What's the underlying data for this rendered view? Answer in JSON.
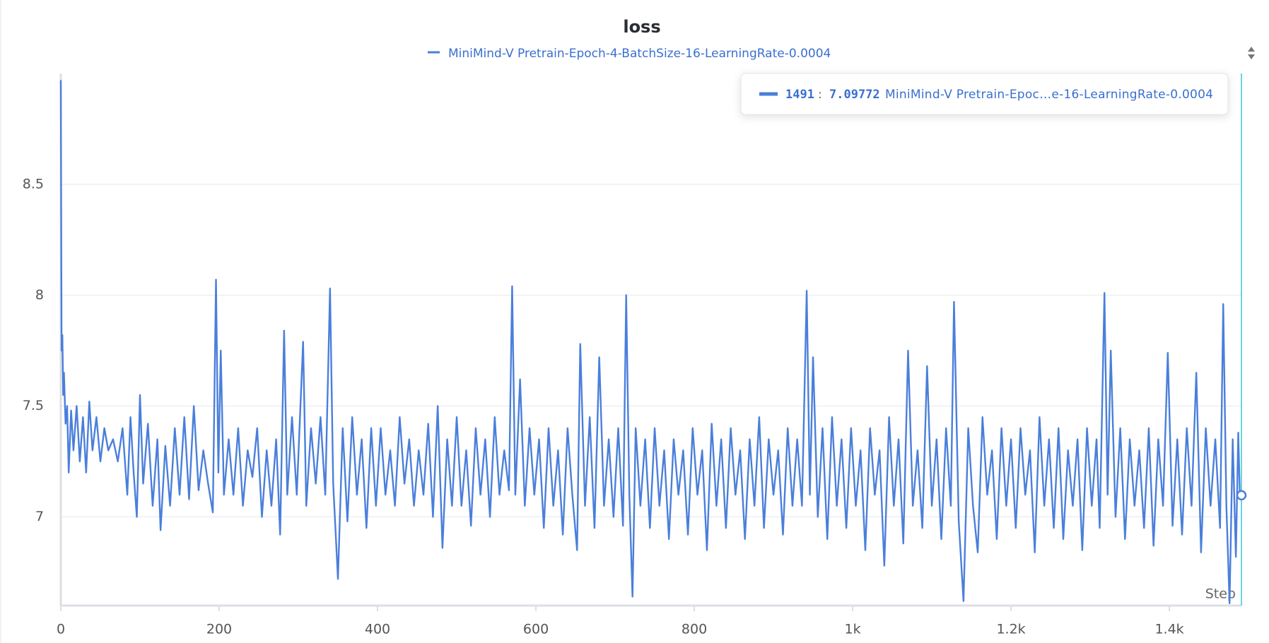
{
  "chart_data": {
    "type": "line",
    "title": "loss",
    "x_label": "Step",
    "x": [
      0,
      1,
      2,
      3,
      4,
      6,
      8,
      10,
      13,
      16,
      20,
      24,
      28,
      32,
      36,
      40,
      45,
      50,
      55,
      60,
      66,
      72,
      78,
      84,
      88,
      92,
      96,
      100,
      104,
      110,
      116,
      122,
      126,
      132,
      138,
      144,
      150,
      156,
      162,
      168,
      174,
      180,
      186,
      192,
      196,
      199,
      202,
      206,
      212,
      218,
      224,
      230,
      236,
      242,
      248,
      254,
      260,
      266,
      272,
      277,
      282,
      286,
      292,
      298,
      306,
      310,
      316,
      322,
      328,
      334,
      340,
      344,
      350,
      356,
      362,
      368,
      374,
      380,
      386,
      392,
      398,
      404,
      410,
      416,
      422,
      428,
      434,
      440,
      446,
      452,
      458,
      464,
      470,
      476,
      482,
      488,
      494,
      500,
      506,
      512,
      518,
      524,
      530,
      536,
      542,
      548,
      554,
      560,
      566,
      570,
      574,
      580,
      586,
      592,
      598,
      604,
      610,
      616,
      622,
      628,
      634,
      640,
      646,
      652,
      656,
      662,
      668,
      674,
      680,
      686,
      692,
      698,
      704,
      710,
      714,
      718,
      722,
      726,
      732,
      738,
      744,
      750,
      756,
      762,
      768,
      774,
      780,
      786,
      792,
      798,
      804,
      810,
      816,
      822,
      828,
      834,
      840,
      846,
      852,
      858,
      864,
      870,
      876,
      882,
      888,
      894,
      900,
      906,
      912,
      918,
      924,
      930,
      936,
      942,
      946,
      950,
      956,
      962,
      968,
      974,
      980,
      986,
      992,
      998,
      1004,
      1010,
      1016,
      1022,
      1028,
      1034,
      1040,
      1046,
      1052,
      1058,
      1064,
      1070,
      1076,
      1082,
      1088,
      1094,
      1100,
      1106,
      1112,
      1118,
      1124,
      1128,
      1134,
      1140,
      1146,
      1152,
      1158,
      1164,
      1170,
      1176,
      1182,
      1188,
      1194,
      1200,
      1206,
      1212,
      1218,
      1224,
      1230,
      1236,
      1242,
      1248,
      1254,
      1260,
      1266,
      1272,
      1278,
      1284,
      1290,
      1296,
      1302,
      1308,
      1312,
      1318,
      1322,
      1326,
      1332,
      1338,
      1344,
      1350,
      1356,
      1362,
      1368,
      1374,
      1380,
      1386,
      1392,
      1398,
      1404,
      1410,
      1416,
      1422,
      1428,
      1434,
      1440,
      1446,
      1452,
      1458,
      1464,
      1468,
      1472,
      1476,
      1480,
      1484,
      1487,
      1489,
      1491
    ],
    "series": [
      {
        "name": "MiniMind-V Pretrain-Epoch-4-BatchSize-16-LearningRate-0.0004",
        "color": "#4a7fdb",
        "values": [
          8.97,
          7.75,
          7.82,
          7.55,
          7.65,
          7.42,
          7.5,
          7.2,
          7.48,
          7.3,
          7.5,
          7.25,
          7.45,
          7.2,
          7.52,
          7.3,
          7.45,
          7.25,
          7.4,
          7.3,
          7.35,
          7.25,
          7.4,
          7.1,
          7.45,
          7.2,
          7.0,
          7.55,
          7.15,
          7.42,
          7.05,
          7.35,
          6.94,
          7.32,
          7.05,
          7.4,
          7.1,
          7.45,
          7.08,
          7.5,
          7.12,
          7.3,
          7.15,
          7.02,
          8.07,
          7.2,
          7.75,
          7.1,
          7.35,
          7.1,
          7.4,
          7.05,
          7.3,
          7.18,
          7.4,
          7.0,
          7.3,
          7.05,
          7.35,
          6.92,
          7.84,
          7.1,
          7.45,
          7.1,
          7.79,
          7.05,
          7.4,
          7.15,
          7.45,
          7.1,
          8.03,
          7.15,
          6.72,
          7.4,
          6.98,
          7.45,
          7.1,
          7.35,
          6.95,
          7.4,
          7.05,
          7.4,
          7.1,
          7.3,
          7.05,
          7.45,
          7.15,
          7.35,
          7.05,
          7.3,
          7.1,
          7.42,
          7.0,
          7.5,
          6.86,
          7.35,
          7.05,
          7.45,
          7.05,
          7.3,
          6.96,
          7.4,
          7.1,
          7.35,
          7.0,
          7.45,
          7.1,
          7.3,
          7.12,
          8.04,
          7.1,
          7.62,
          7.05,
          7.4,
          7.1,
          7.35,
          6.95,
          7.4,
          7.05,
          7.3,
          6.92,
          7.4,
          7.1,
          6.85,
          7.78,
          7.05,
          7.45,
          6.95,
          7.72,
          7.05,
          7.35,
          7.0,
          7.4,
          6.96,
          8.0,
          7.1,
          6.64,
          7.4,
          7.05,
          7.35,
          6.95,
          7.4,
          7.05,
          7.3,
          6.9,
          7.35,
          7.1,
          7.3,
          6.92,
          7.4,
          7.1,
          7.3,
          6.85,
          7.42,
          7.05,
          7.35,
          6.95,
          7.4,
          7.1,
          7.3,
          6.9,
          7.35,
          7.05,
          7.45,
          6.95,
          7.35,
          7.1,
          7.3,
          6.92,
          7.4,
          7.05,
          7.35,
          7.05,
          8.02,
          7.1,
          7.72,
          7.0,
          7.4,
          6.9,
          7.45,
          7.05,
          7.35,
          6.95,
          7.4,
          7.05,
          7.3,
          6.85,
          7.4,
          7.1,
          7.3,
          6.78,
          7.45,
          7.05,
          7.35,
          6.88,
          7.75,
          7.05,
          7.3,
          6.95,
          7.68,
          7.05,
          7.35,
          6.9,
          7.4,
          7.05,
          7.97,
          6.98,
          6.62,
          7.4,
          7.05,
          6.84,
          7.45,
          7.1,
          7.3,
          6.9,
          7.4,
          7.05,
          7.35,
          6.95,
          7.4,
          7.1,
          7.3,
          6.84,
          7.45,
          7.05,
          7.35,
          6.95,
          7.4,
          6.9,
          7.3,
          7.05,
          7.35,
          6.85,
          7.4,
          7.05,
          7.35,
          6.95,
          8.01,
          7.1,
          7.75,
          7.0,
          7.4,
          6.9,
          7.35,
          7.05,
          7.3,
          6.95,
          7.4,
          6.87,
          7.35,
          7.05,
          7.74,
          6.96,
          7.35,
          6.92,
          7.4,
          7.05,
          7.65,
          6.84,
          7.4,
          7.05,
          7.35,
          6.95,
          7.96,
          7.05,
          6.61,
          7.35,
          6.82,
          7.38,
          7.1,
          7.09772
        ]
      }
    ],
    "xlim": [
      0,
      1491
    ],
    "ylim": [
      6.6,
      9.0
    ],
    "xticks": [
      0,
      200,
      400,
      600,
      800,
      {
        "value": 1000,
        "label": "1k"
      },
      {
        "value": 1200,
        "label": "1.2k"
      },
      {
        "value": 1400,
        "label": "1.4k"
      }
    ],
    "yticks": [
      7,
      7.5,
      8,
      8.5
    ],
    "grid": true,
    "tooltip": {
      "step": 1491,
      "value": 7.09772,
      "label": "MiniMind-V Pretrain-Epoc…e-16-LearningRate-0.0004"
    }
  }
}
